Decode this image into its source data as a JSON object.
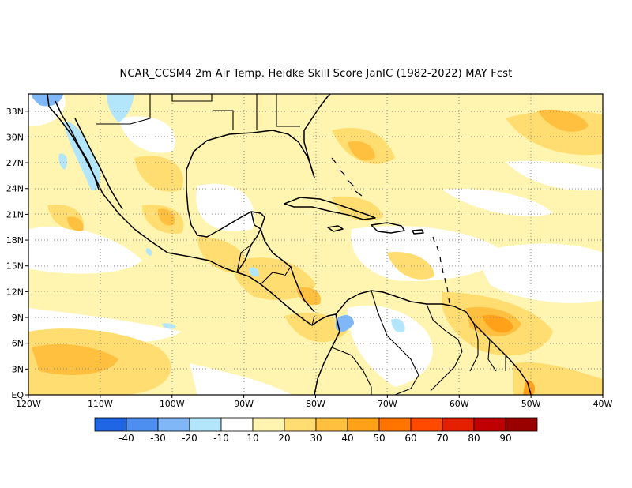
{
  "title": "NCAR_CCSM4  2m Air Temp. Heidke Skill Score JanIC (1982-2022) MAY Fcst",
  "map": {
    "lon_range": [
      -120,
      -40
    ],
    "lat_range": [
      0,
      35
    ],
    "x_ticks": [
      {
        "lon": -120,
        "label": "120W"
      },
      {
        "lon": -110,
        "label": "110W"
      },
      {
        "lon": -100,
        "label": "100W"
      },
      {
        "lon": -90,
        "label": "90W"
      },
      {
        "lon": -80,
        "label": "80W"
      },
      {
        "lon": -70,
        "label": "70W"
      },
      {
        "lon": -60,
        "label": "60W"
      },
      {
        "lon": -50,
        "label": "50W"
      },
      {
        "lon": -40,
        "label": "40W"
      }
    ],
    "y_ticks": [
      {
        "lat": 0,
        "label": "EQ"
      },
      {
        "lat": 3,
        "label": "3N"
      },
      {
        "lat": 6,
        "label": "6N"
      },
      {
        "lat": 9,
        "label": "9N"
      },
      {
        "lat": 12,
        "label": "12N"
      },
      {
        "lat": 15,
        "label": "15N"
      },
      {
        "lat": 18,
        "label": "18N"
      },
      {
        "lat": 21,
        "label": "21N"
      },
      {
        "lat": 24,
        "label": "24N"
      },
      {
        "lat": 27,
        "label": "27N"
      },
      {
        "lat": 30,
        "label": "30N"
      },
      {
        "lat": 33,
        "label": "33N"
      }
    ],
    "grid": "dotted"
  },
  "colorbar": {
    "colors": [
      "#1f66e5",
      "#4d8ff0",
      "#80b8f7",
      "#b3e6fb",
      "#ffffff",
      "#fff5b0",
      "#ffdd70",
      "#ffc040",
      "#ffa21a",
      "#ff7500",
      "#ff4a00",
      "#e52000",
      "#c00000",
      "#990000"
    ],
    "labels": [
      "-40",
      "-30",
      "-20",
      "-10",
      "10",
      "20",
      "30",
      "40",
      "50",
      "60",
      "70",
      "80",
      "90"
    ]
  }
}
